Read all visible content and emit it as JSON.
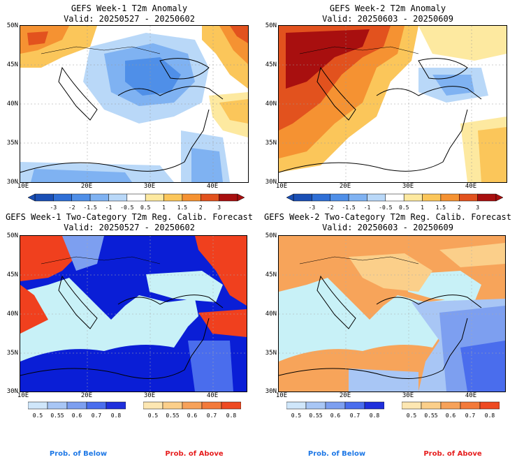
{
  "panels": [
    {
      "title": "GEFS Week-1 T2m Anomaly",
      "valid": "Valid: 20250527 - 20250602",
      "kind": "anomaly",
      "y_ticks": [
        "50N",
        "45N",
        "40N",
        "35N",
        "30N"
      ],
      "x_ticks": [
        "10E",
        "20E",
        "30E",
        "40E"
      ]
    },
    {
      "title": "GEFS Week-2 T2m Anomaly",
      "valid": "Valid: 20250603 - 20250609",
      "kind": "anomaly",
      "y_ticks": [
        "50N",
        "45N",
        "40N",
        "35N",
        "30N"
      ],
      "x_ticks": [
        "10E",
        "20E",
        "30E",
        "40E"
      ]
    },
    {
      "title": "GEFS Week-1 Two-Category T2m Reg. Calib. Forecast",
      "valid": "Valid: 20250527 - 20250602",
      "kind": "prob",
      "y_ticks": [
        "50N",
        "45N",
        "40N",
        "35N",
        "30N"
      ],
      "x_ticks": [
        "10E",
        "20E",
        "30E",
        "40E"
      ]
    },
    {
      "title": "GEFS Week-2 Two-Category T2m Reg. Calib. Forecast",
      "valid": "Valid: 20250603 - 20250609",
      "kind": "prob",
      "y_ticks": [
        "50N",
        "45N",
        "40N",
        "35N",
        "30N"
      ],
      "x_ticks": [
        "10E",
        "20E",
        "30E",
        "40E"
      ]
    }
  ],
  "anomaly_colorbar": {
    "labels": [
      "-3",
      "-2",
      "-1.5",
      "-1",
      "-0.5",
      "0.5",
      "1",
      "1.5",
      "2",
      "3"
    ],
    "colors": [
      "#1a4fb5",
      "#2f6fd6",
      "#4f8fe8",
      "#7fb2f2",
      "#b9d8f8",
      "#ffffff",
      "#fde9a0",
      "#fbc65a",
      "#f59232",
      "#e2521e",
      "#a80f0f"
    ]
  },
  "prob_colorbar_below": {
    "labels": [
      "0.5",
      "0.55",
      "0.6",
      "0.7",
      "0.8"
    ],
    "colors": [
      "#cfe6fa",
      "#a8c6f5",
      "#7d9ff0",
      "#4a6ded",
      "#1f2fdc"
    ]
  },
  "prob_colorbar_above": {
    "labels": [
      "0.5",
      "0.55",
      "0.6",
      "0.7",
      "0.8"
    ],
    "colors": [
      "#fde7b2",
      "#fbcf8a",
      "#f7a25a",
      "#f37a3a",
      "#ee4a22"
    ]
  },
  "legend": {
    "below_left": "Prob. of Below",
    "above_left": "Prob. of Above",
    "below_right": "Prob. of Below",
    "above_right": "Prob. of Above"
  },
  "colors": {
    "sea_prob": "#c8f1f7",
    "deep_blue": "#0a1ed6",
    "red": "#f0401e",
    "orange": "#f7a45a"
  }
}
